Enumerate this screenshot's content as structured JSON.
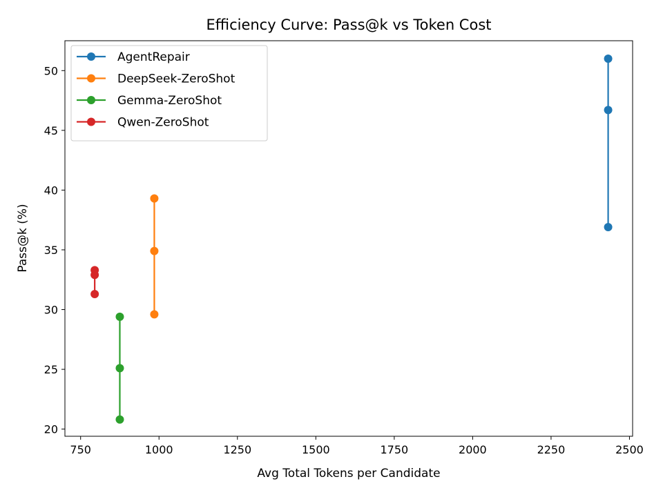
{
  "chart_data": {
    "type": "line",
    "title": "Efficiency Curve: Pass@k vs Token Cost",
    "xlabel": "Avg Total Tokens per Candidate",
    "ylabel": "Pass@k (%)",
    "xlim": [
      700,
      2510
    ],
    "ylim": [
      19.4,
      52.5
    ],
    "xticks": [
      750,
      1000,
      1250,
      1500,
      1750,
      2000,
      2250,
      2500
    ],
    "yticks": [
      20,
      25,
      30,
      35,
      40,
      45,
      50
    ],
    "grid": false,
    "legend_position": "top-left",
    "series": [
      {
        "name": "AgentRepair",
        "color": "#1f77b4",
        "x": [
          2432,
          2432,
          2432
        ],
        "y": [
          36.9,
          46.7,
          51.0
        ]
      },
      {
        "name": "DeepSeek-ZeroShot",
        "color": "#ff7f0e",
        "x": [
          985,
          985,
          985
        ],
        "y": [
          29.6,
          34.9,
          39.3
        ]
      },
      {
        "name": "Gemma-ZeroShot",
        "color": "#2ca02c",
        "x": [
          875,
          875,
          875
        ],
        "y": [
          20.8,
          25.1,
          29.4
        ]
      },
      {
        "name": "Qwen-ZeroShot",
        "color": "#d62728",
        "x": [
          795,
          795,
          795
        ],
        "y": [
          31.3,
          32.9,
          33.3
        ]
      }
    ]
  }
}
